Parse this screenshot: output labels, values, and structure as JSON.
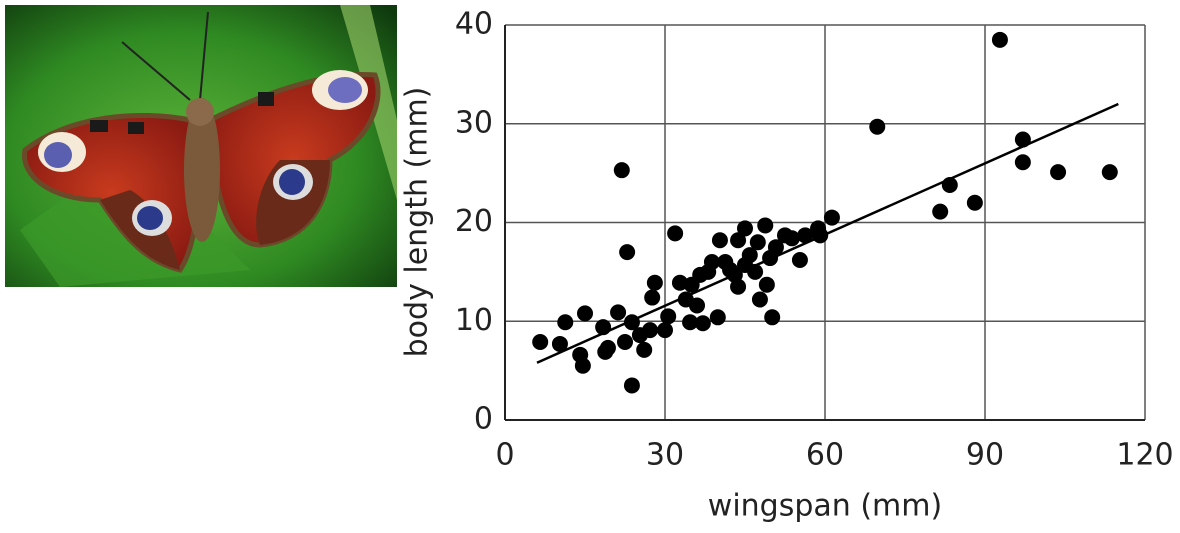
{
  "chart_data": {
    "type": "scatter",
    "xlabel": "wingspan (mm)",
    "ylabel": "body length (mm)",
    "xlim": [
      0,
      120
    ],
    "xticks": [
      0,
      30,
      60,
      90,
      120
    ],
    "ylim": [
      0,
      40
    ],
    "yticks": [
      0,
      10,
      20,
      30,
      40
    ],
    "grid": true,
    "series": [
      {
        "color": "#000000",
        "x": [
          6.6,
          10.3,
          11.3,
          15,
          14.1,
          14.6,
          18.4,
          18.8,
          19.3,
          21.2,
          21.9,
          22.9,
          22.5,
          23.8,
          23.8,
          25.3,
          26.1,
          27.6,
          28.1,
          27.2,
          30,
          30.6,
          31.9,
          32.8,
          33.9,
          34.7,
          35,
          36,
          36.6,
          37.1,
          38.1,
          38.8,
          39.9,
          40.3,
          41.3,
          42.2,
          43.1,
          43.7,
          43.7,
          45,
          45,
          45.9,
          46.9,
          47.4,
          47.8,
          48.8,
          49.1,
          49.7,
          50.1,
          50.8,
          52.5,
          53.8,
          55.3,
          56.3,
          58.7,
          59.1,
          61.3,
          69.8,
          81.6,
          83.4,
          88.1,
          92.8,
          97.1,
          97.1,
          103.7,
          113.4
        ],
        "values": [
          7.9,
          7.7,
          9.9,
          10.8,
          6.6,
          5.5,
          9.4,
          6.9,
          7.3,
          10.9,
          25.3,
          17,
          7.9,
          3.5,
          9.9,
          8.6,
          7.1,
          12.4,
          13.9,
          9.1,
          9.1,
          10.5,
          18.9,
          13.9,
          12.2,
          9.9,
          13.7,
          11.6,
          14.7,
          9.8,
          15,
          16,
          10.4,
          18.2,
          16,
          15.2,
          14.7,
          13.5,
          18.2,
          19.4,
          15.7,
          16.7,
          15,
          18,
          12.2,
          19.7,
          13.7,
          16.4,
          10.4,
          17.5,
          18.7,
          18.4,
          16.2,
          18.7,
          19.4,
          18.7,
          20.5,
          29.7,
          21.1,
          23.8,
          22,
          38.5,
          28.4,
          26.1,
          25.1,
          25.1
        ]
      }
    ],
    "trendline": {
      "color": "#000000",
      "x": [
        6,
        115
      ],
      "values": [
        5.8,
        32
      ]
    }
  }
}
